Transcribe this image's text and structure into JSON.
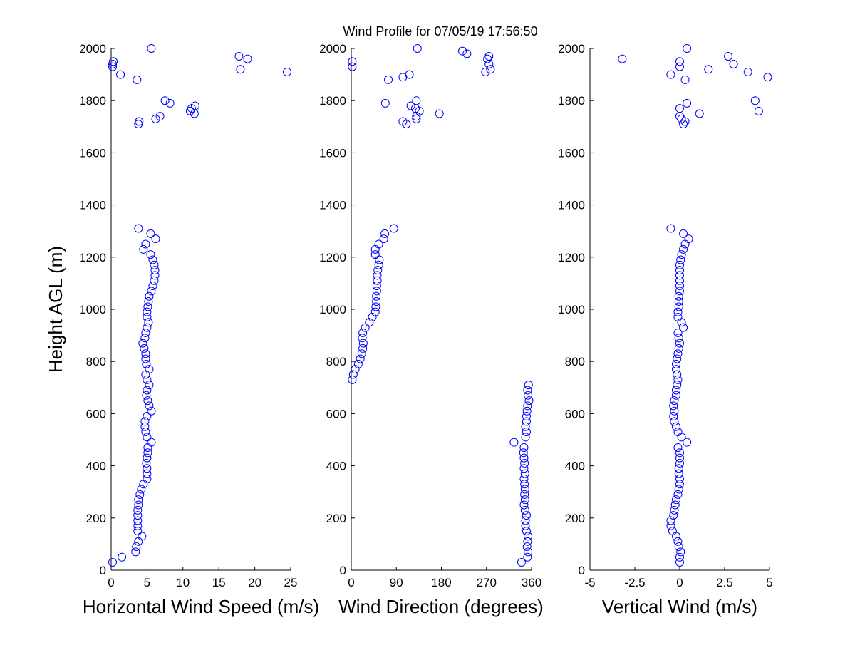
{
  "chart_data": {
    "title": "Wind Profile for  07/05/19 17:56:50",
    "ylabel": "Height AGL (m)",
    "ylim": [
      0,
      2000
    ],
    "yticks": [
      0,
      200,
      400,
      600,
      800,
      1000,
      1200,
      1400,
      1600,
      1800,
      2000
    ],
    "grid": false,
    "marker": "open-circle",
    "marker_color": "#0000ff",
    "heights": [
      30,
      50,
      70,
      90,
      110,
      130,
      150,
      170,
      190,
      210,
      230,
      250,
      270,
      290,
      310,
      330,
      350,
      370,
      390,
      410,
      430,
      450,
      470,
      490,
      510,
      530,
      550,
      570,
      590,
      610,
      630,
      650,
      670,
      690,
      710,
      730,
      750,
      770,
      790,
      810,
      830,
      850,
      870,
      890,
      910,
      930,
      950,
      970,
      990,
      1010,
      1030,
      1050,
      1070,
      1090,
      1110,
      1130,
      1150,
      1170,
      1190,
      1210,
      1230,
      1250,
      1270,
      1290,
      1310
    ],
    "panels": [
      {
        "type": "scatter",
        "xlabel": "Horizontal Wind Speed (m/s)",
        "xlim": [
          0,
          25
        ],
        "xticks": [
          "0",
          "5",
          "10",
          "15",
          "20",
          "25"
        ],
        "xtick_values": [
          0,
          5,
          10,
          15,
          20,
          25
        ],
        "values": [
          0.2,
          1.5,
          3.4,
          3.5,
          3.8,
          4.3,
          3.7,
          3.7,
          3.7,
          3.7,
          3.7,
          3.8,
          3.8,
          4.0,
          4.2,
          4.5,
          5.0,
          5.0,
          5.0,
          4.9,
          5.0,
          5.1,
          5.1,
          5.6,
          5.0,
          4.8,
          4.7,
          4.7,
          5.0,
          5.6,
          5.3,
          5.1,
          4.9,
          5.0,
          5.3,
          5.0,
          4.8,
          5.3,
          4.9,
          4.8,
          4.8,
          4.6,
          4.4,
          4.7,
          4.8,
          5.0,
          5.2,
          5.0,
          5.0,
          5.1,
          5.2,
          5.3,
          5.6,
          5.8,
          6.0,
          6.1,
          6.1,
          6.0,
          5.8,
          5.5,
          4.5,
          4.8,
          6.2,
          5.5,
          3.8
        ],
        "upper_points": [
          [
            5.6,
            2000
          ],
          [
            17.8,
            1970
          ],
          [
            19,
            1960
          ],
          [
            0.3,
            1950
          ],
          [
            0.2,
            1940
          ],
          [
            0.2,
            1930
          ],
          [
            18,
            1920
          ],
          [
            24.5,
            1910
          ],
          [
            1.3,
            1900
          ],
          [
            3.6,
            1880
          ],
          [
            7.5,
            1800
          ],
          [
            8.2,
            1790
          ],
          [
            11.7,
            1780
          ],
          [
            11.2,
            1770
          ],
          [
            11,
            1760
          ],
          [
            11.6,
            1750
          ],
          [
            6.8,
            1740
          ],
          [
            6.2,
            1730
          ],
          [
            3.9,
            1720
          ],
          [
            3.8,
            1710
          ]
        ]
      },
      {
        "type": "scatter",
        "xlabel": "Wind Direction (degrees)",
        "xlim": [
          0,
          360
        ],
        "xticks": [
          "0",
          "90",
          "180",
          "270",
          "360"
        ],
        "xtick_values": [
          0,
          90,
          180,
          270,
          360
        ],
        "values": [
          340,
          352,
          353,
          351,
          352,
          353,
          350,
          348,
          348,
          350,
          347,
          345,
          347,
          346,
          347,
          346,
          345,
          347,
          345,
          346,
          345,
          344,
          345,
          325,
          348,
          350,
          348,
          350,
          350,
          351,
          352,
          355,
          353,
          352,
          354,
          2,
          4,
          8,
          14,
          18,
          21,
          23,
          24,
          22,
          23,
          28,
          36,
          42,
          48,
          49,
          50,
          50,
          51,
          51,
          52,
          52,
          53,
          55,
          56,
          48,
          48,
          55,
          65,
          67,
          85
        ],
        "upper_points": [
          [
            132,
            2000
          ],
          [
            222,
            1990
          ],
          [
            231,
            1980
          ],
          [
            275,
            1970
          ],
          [
            272,
            1960
          ],
          [
            2,
            1950
          ],
          [
            275,
            1940
          ],
          [
            2,
            1930
          ],
          [
            278,
            1920
          ],
          [
            268,
            1910
          ],
          [
            116,
            1900
          ],
          [
            103,
            1890
          ],
          [
            74,
            1880
          ],
          [
            130,
            1800
          ],
          [
            68,
            1790
          ],
          [
            119,
            1780
          ],
          [
            128,
            1770
          ],
          [
            136,
            1760
          ],
          [
            176,
            1750
          ],
          [
            130,
            1740
          ],
          [
            130,
            1730
          ],
          [
            103,
            1720
          ],
          [
            110,
            1710
          ]
        ]
      },
      {
        "type": "scatter",
        "xlabel": "Vertical Wind (m/s)",
        "xlim": [
          -5,
          5
        ],
        "xticks": [
          "-5",
          "-2.5",
          "0",
          "2.5",
          "5"
        ],
        "xtick_values": [
          -5,
          -2.5,
          0,
          2.5,
          5
        ],
        "values": [
          0,
          0,
          0.05,
          -0.05,
          -0.1,
          -0.2,
          -0.4,
          -0.5,
          -0.5,
          -0.35,
          -0.3,
          -0.25,
          -0.2,
          -0.1,
          -0.05,
          0,
          0,
          -0.05,
          -0.05,
          0,
          0,
          0,
          -0.1,
          0.4,
          0.1,
          -0.1,
          -0.2,
          -0.3,
          -0.35,
          -0.3,
          -0.35,
          -0.3,
          -0.2,
          -0.2,
          -0.15,
          -0.1,
          -0.15,
          -0.2,
          -0.2,
          -0.15,
          -0.1,
          -0.05,
          0,
          -0.05,
          -0.1,
          0.2,
          0.1,
          -0.1,
          -0.1,
          -0.05,
          -0.05,
          -0.05,
          0,
          0,
          0,
          0,
          0,
          0,
          0.05,
          0.1,
          0.2,
          0.3,
          0.5,
          0.2,
          -0.5
        ],
        "upper_points": [
          [
            0.4,
            2000
          ],
          [
            2.7,
            1970
          ],
          [
            -3.2,
            1960
          ],
          [
            0,
            1950
          ],
          [
            3,
            1940
          ],
          [
            0,
            1930
          ],
          [
            1.6,
            1920
          ],
          [
            3.8,
            1910
          ],
          [
            -0.5,
            1900
          ],
          [
            4.9,
            1890
          ],
          [
            0.3,
            1880
          ],
          [
            4.2,
            1800
          ],
          [
            0.4,
            1790
          ],
          [
            0,
            1770
          ],
          [
            4.4,
            1760
          ],
          [
            1.1,
            1750
          ],
          [
            0,
            1740
          ],
          [
            0.1,
            1730
          ],
          [
            0.3,
            1720
          ],
          [
            0.2,
            1710
          ]
        ]
      }
    ]
  }
}
